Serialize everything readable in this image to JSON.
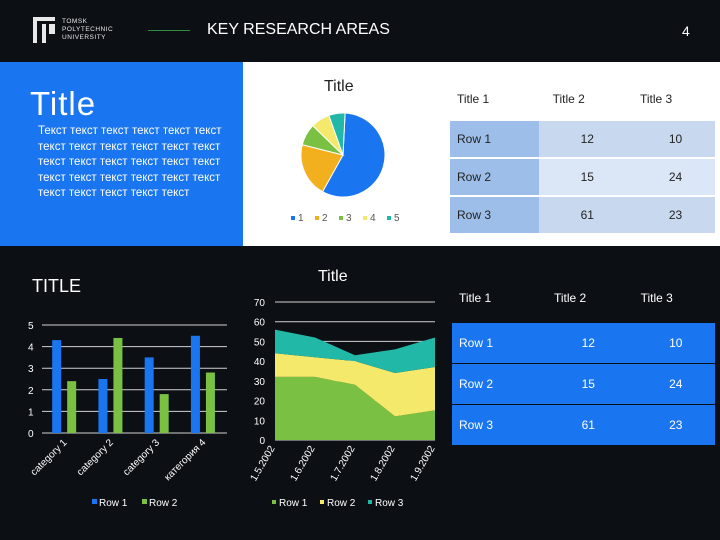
{
  "header": {
    "logo_lines": [
      "TOMSK",
      "POLYTECHNIC",
      "UNIVERSITY"
    ],
    "title": "KEY RESEARCH AREAS",
    "page_number": "4"
  },
  "intro": {
    "title": "Title",
    "body": "Текст текст текст текст текст текст текст текст текст текст текст текст текст текст текст текст текст текст текст текст текст текст текст текст текст текст текст текст текст"
  },
  "section2_title": "TITLE",
  "table_top": {
    "headers": [
      "Title 1",
      "Title 2",
      "Title 3"
    ],
    "rows": [
      {
        "label": "Row 1",
        "v2": "12",
        "v3": "10"
      },
      {
        "label": "Row 2",
        "v2": "15",
        "v3": "24"
      },
      {
        "label": "Row 3",
        "v2": "61",
        "v3": "23"
      }
    ]
  },
  "table_bottom": {
    "headers": [
      "Title 1",
      "Title 2",
      "Title 3"
    ],
    "rows": [
      {
        "label": "Row 1",
        "v2": "12",
        "v3": "10"
      },
      {
        "label": "Row 2",
        "v2": "15",
        "v3": "24"
      },
      {
        "label": "Row 3",
        "v2": "61",
        "v3": "23"
      }
    ]
  },
  "chart_data": [
    {
      "type": "pie",
      "title": "Title",
      "categories": [
        "1",
        "2",
        "3",
        "4",
        "5"
      ],
      "values": [
        55,
        20,
        8,
        7,
        6
      ],
      "colors": [
        "#1a75f0",
        "#f2b01e",
        "#7ac143",
        "#f4e96a",
        "#22b8a8"
      ],
      "legend": "bottom"
    },
    {
      "type": "bar",
      "title": "",
      "categories": [
        "category 1",
        "category 2",
        "category 3",
        "категория 4"
      ],
      "series": [
        {
          "name": "Row 1",
          "values": [
            4.3,
            2.5,
            3.5,
            4.5
          ],
          "color": "#1a75f0"
        },
        {
          "name": "Row 2",
          "values": [
            2.4,
            4.4,
            1.8,
            2.8
          ],
          "color": "#7ac143"
        }
      ],
      "ylim": [
        0,
        5
      ],
      "yticks": [
        "0",
        "1",
        "2",
        "3",
        "4",
        "5"
      ],
      "legend": "bottom"
    },
    {
      "type": "area",
      "title": "Title",
      "categories": [
        "1.5.2002",
        "1.6.2002",
        "1.7.2002",
        "1.8.2002",
        "1.9.2002"
      ],
      "series": [
        {
          "name": "Row 1",
          "values": [
            32,
            32,
            28,
            12,
            15
          ],
          "color": "#7ac143"
        },
        {
          "name": "Row 2",
          "values": [
            12,
            10,
            12,
            22,
            22
          ],
          "color": "#f4e96a"
        },
        {
          "name": "Row 3",
          "values": [
            12,
            10,
            3,
            12,
            15
          ],
          "color": "#22b8a8"
        }
      ],
      "ylim": [
        0,
        70
      ],
      "yticks": [
        "0",
        "10",
        "20",
        "30",
        "40",
        "50",
        "60",
        "70"
      ],
      "legend": "bottom"
    }
  ]
}
